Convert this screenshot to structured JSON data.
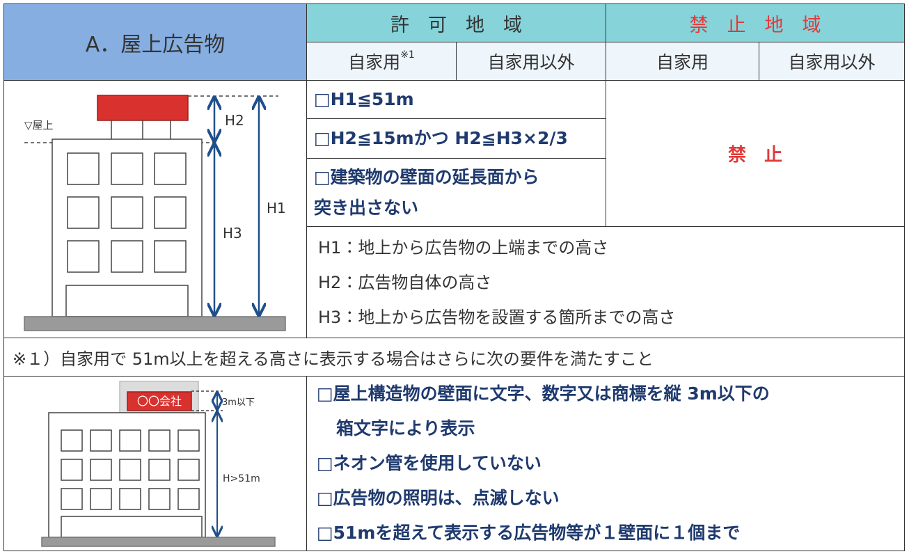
{
  "header": {
    "title": "A．屋上広告物",
    "permitted": "許　可　地　域",
    "prohibited": "禁　止　地　域",
    "columns": [
      "自家用",
      "自家用以外",
      "自家用",
      "自家用以外"
    ],
    "footnote_mark": "※1"
  },
  "conditions": [
    [
      "□H1≦51m"
    ],
    [
      "□H2≦15mかつ H2≦H3×2/3"
    ],
    [
      "□建築物の壁面の延長面から",
      "突き出さない"
    ]
  ],
  "prohibited_cell": "禁　止",
  "definitions": [
    "H1：地上から広告物の上端までの高さ",
    "H2：広告物自体の高さ",
    "H3：地上から広告物を設置する箇所までの高さ"
  ],
  "note": "※１）自家用で 51m以上を超える高さに表示する場合はさらに次の要件を満たすこと",
  "requirements": [
    [
      "□屋上構造物の壁面に文字、数字又は商標を縦 3m以下の",
      "箱文字により表示"
    ],
    [
      "□ネオン管を使用していない"
    ],
    [
      "□広告物の照明は、点滅しない"
    ],
    [
      "□51mを超えて表示する広告物等が１壁面に１個まで"
    ]
  ],
  "diagram1": {
    "rooftop": "▽屋上",
    "h2": "H2",
    "h3": "H3",
    "h1": "H1"
  },
  "diagram2": {
    "sign": "〇〇会社",
    "limit": "3m以下",
    "height": "H>51m"
  }
}
